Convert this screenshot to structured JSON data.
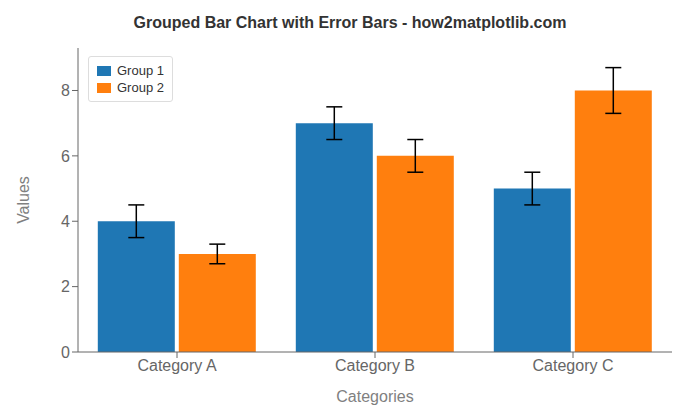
{
  "chart_data": {
    "type": "bar",
    "title": "Grouped Bar Chart with Error Bars - how2matplotlib.com",
    "xlabel": "Categories",
    "ylabel": "Values",
    "categories": [
      "Category A",
      "Category B",
      "Category C"
    ],
    "series": [
      {
        "name": "Group 1",
        "color": "#1f77b4",
        "values": [
          4,
          7,
          5
        ],
        "errors": [
          0.5,
          0.5,
          0.5
        ]
      },
      {
        "name": "Group 2",
        "color": "#ff7f0e",
        "values": [
          3,
          6,
          8
        ],
        "errors": [
          0.3,
          0.5,
          0.7
        ]
      }
    ],
    "ylim": [
      0,
      9.3
    ],
    "yticks": [
      0,
      2,
      4,
      6,
      8
    ],
    "grid": false,
    "legend": "upper left"
  }
}
